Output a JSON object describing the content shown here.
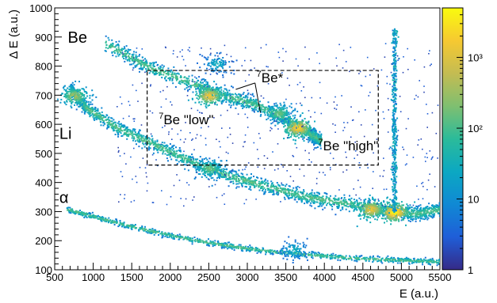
{
  "chart_data": {
    "type": "heatmap",
    "title": "",
    "xlabel": "E (a.u.)",
    "ylabel": "Δ E (a.u.)",
    "xlim": [
      500,
      5500
    ],
    "ylim": [
      100,
      1000
    ],
    "x_ticks": [
      "500",
      "1000",
      "1500",
      "2000",
      "2500",
      "3000",
      "3500",
      "4000",
      "4500",
      "5000",
      "5500"
    ],
    "y_ticks": [
      "100",
      "200",
      "300",
      "400",
      "500",
      "600",
      "700",
      "800",
      "900",
      "1000"
    ],
    "colorbar": {
      "scale": "log",
      "range": [
        1,
        5000
      ],
      "tick_labels": [
        "1",
        "10",
        "10²",
        "10³"
      ],
      "tick_values": [
        1,
        10,
        100,
        1000
      ],
      "colors": [
        "#352a87",
        "#1f5ed8",
        "#1089d4",
        "#0ca8c2",
        "#2bbb9a",
        "#7fbf70",
        "#c4bc52",
        "#f6c931",
        "#f9fb0e"
      ]
    },
    "loci": [
      {
        "label": "Be",
        "label_x": 570,
        "label_y": 840,
        "band": [
          [
            1150,
            880
          ],
          [
            1700,
            800
          ],
          [
            2300,
            740
          ],
          [
            2700,
            700
          ],
          [
            3100,
            670
          ],
          [
            3500,
            620
          ],
          [
            3800,
            570
          ],
          [
            3950,
            545
          ]
        ],
        "hotspots": [
          [
            2500,
            700,
            0.85
          ],
          [
            3650,
            590,
            0.9
          ],
          [
            3400,
            640,
            0.6
          ],
          [
            2600,
            810,
            0.4
          ]
        ]
      },
      {
        "label": "Li",
        "label_x": 560,
        "label_y": 550,
        "band": [
          [
            700,
            720
          ],
          [
            900,
            660
          ],
          [
            1300,
            590
          ],
          [
            1800,
            530
          ],
          [
            2300,
            470
          ],
          [
            2800,
            420
          ],
          [
            3300,
            385
          ],
          [
            3800,
            350
          ],
          [
            4300,
            330
          ],
          [
            4800,
            305
          ],
          [
            5200,
            295
          ],
          [
            5500,
            310
          ]
        ],
        "hotspots": [
          [
            4900,
            300,
            1.0
          ],
          [
            4600,
            310,
            0.85
          ],
          [
            2500,
            450,
            0.6
          ],
          [
            750,
            700,
            0.7
          ]
        ]
      },
      {
        "label": "α",
        "label_x": 560,
        "label_y": 330,
        "band": [
          [
            650,
            310
          ],
          [
            1000,
            285
          ],
          [
            1500,
            250
          ],
          [
            2000,
            220
          ],
          [
            2500,
            195
          ],
          [
            3000,
            175
          ],
          [
            3500,
            160
          ],
          [
            4000,
            150
          ],
          [
            4500,
            140
          ],
          [
            5000,
            135
          ],
          [
            5500,
            130
          ]
        ],
        "hotspots": [
          [
            3600,
            170,
            0.4
          ]
        ]
      }
    ],
    "vertical_streak": {
      "x": 4900,
      "y_range": [
        300,
        930
      ]
    },
    "selection_box": {
      "x": [
        1700,
        4700
      ],
      "y": [
        460,
        785
      ]
    },
    "annotations": {
      "be7_star": {
        "text": "Be*",
        "superscript": "7",
        "x": 3120,
        "y": 745,
        "arrows": [
          [
            [
              3100,
              742
            ],
            [
              2850,
              720
            ]
          ],
          [
            [
              3100,
              742
            ],
            [
              3170,
              640
            ]
          ]
        ]
      },
      "be7_low": {
        "text": "Be \"low\"",
        "superscript": "7",
        "x": 1850,
        "y": 600
      },
      "be7_high": {
        "text": "Be \"high\"",
        "superscript": "7",
        "x": 3920,
        "y": 510
      }
    }
  }
}
